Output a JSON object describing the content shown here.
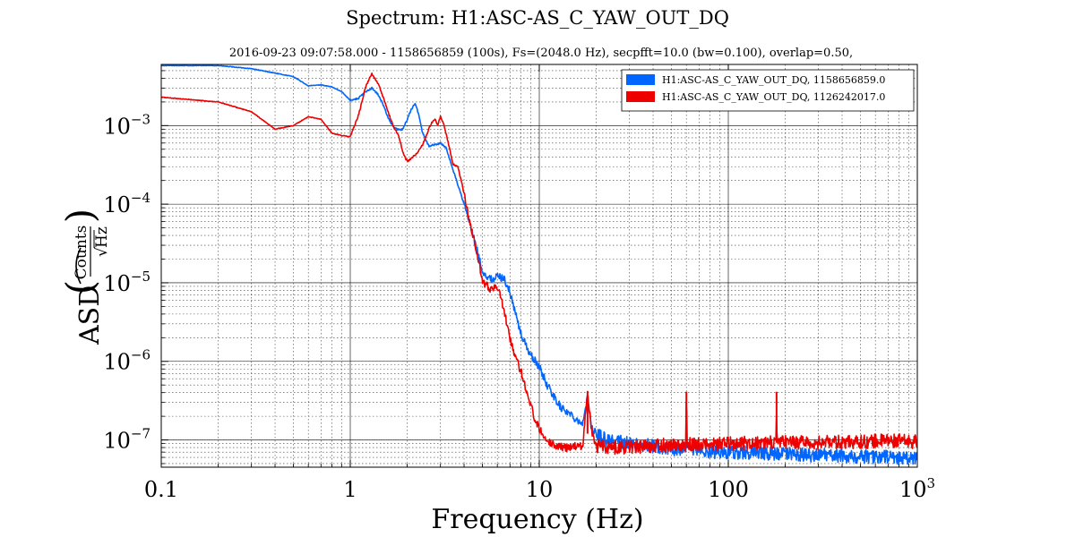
{
  "chart_data": {
    "type": "line",
    "title": "Spectrum: H1:ASC-AS_C_YAW_OUT_DQ",
    "subtitle": "2016-09-23 09:07:58.000 - 1158656859 (100s), Fs=(2048.0 Hz), secpfft=10.0 (bw=0.100), overlap=0.50,",
    "xlabel": "Frequency (Hz)",
    "ylabel": {
      "prefix": "ASD",
      "numerator": "Counts",
      "denominator": "Hz"
    },
    "xscale": "log",
    "yscale": "log",
    "xlim": [
      0.1,
      1000
    ],
    "ylim": [
      4.5e-08,
      0.006
    ],
    "grid": true,
    "legend_position": "top-right",
    "x_ticks": [
      {
        "value": 0.1,
        "label": "0.1"
      },
      {
        "value": 1,
        "label": "1"
      },
      {
        "value": 10,
        "label": "10"
      },
      {
        "value": 100,
        "label": "100"
      },
      {
        "value": 1000,
        "base": "10",
        "exp": "3"
      }
    ],
    "y_ticks": [
      {
        "value": 0.001,
        "base": "10",
        "exp": "−3"
      },
      {
        "value": 0.0001,
        "base": "10",
        "exp": "−4"
      },
      {
        "value": 1e-05,
        "base": "10",
        "exp": "−5"
      },
      {
        "value": 1e-06,
        "base": "10",
        "exp": "−6"
      },
      {
        "value": 1e-07,
        "base": "10",
        "exp": "−7"
      }
    ],
    "series": [
      {
        "name": "H1:ASC-AS_C_YAW_OUT_DQ, 1158656859.0",
        "color": "#0066ff",
        "points": [
          [
            0.1,
            0.0058
          ],
          [
            0.2,
            0.0058
          ],
          [
            0.3,
            0.0053
          ],
          [
            0.5,
            0.0042
          ],
          [
            0.6,
            0.0032
          ],
          [
            0.7,
            0.0033
          ],
          [
            0.8,
            0.0031
          ],
          [
            0.9,
            0.0027
          ],
          [
            1.0,
            0.0021
          ],
          [
            1.1,
            0.0022
          ],
          [
            1.2,
            0.0027
          ],
          [
            1.3,
            0.003
          ],
          [
            1.4,
            0.0025
          ],
          [
            1.5,
            0.0018
          ],
          [
            1.6,
            0.0012
          ],
          [
            1.7,
            0.00095
          ],
          [
            1.8,
            0.00088
          ],
          [
            1.9,
            0.0009
          ],
          [
            2.0,
            0.0012
          ],
          [
            2.1,
            0.0016
          ],
          [
            2.2,
            0.0019
          ],
          [
            2.3,
            0.0014
          ],
          [
            2.4,
            0.00085
          ],
          [
            2.6,
            0.00055
          ],
          [
            2.8,
            0.00057
          ],
          [
            3.0,
            0.0006
          ],
          [
            3.2,
            0.00053
          ],
          [
            3.4,
            0.00034
          ],
          [
            3.7,
            0.00018
          ],
          [
            4.0,
            0.0001
          ],
          [
            4.3,
            5.5e-05
          ],
          [
            4.7,
            2.5e-05
          ],
          [
            5.0,
            1.4e-05
          ],
          [
            5.5,
            1.1e-05
          ],
          [
            6.0,
            1.2e-05
          ],
          [
            6.5,
            1.15e-05
          ],
          [
            7.0,
            7.5e-06
          ],
          [
            7.5,
            4e-06
          ],
          [
            8.0,
            2.2e-06
          ],
          [
            9.0,
            1.2e-06
          ],
          [
            10.0,
            8.5e-07
          ],
          [
            11.0,
            5e-07
          ],
          [
            12.0,
            3.5e-07
          ],
          [
            13.0,
            2.6e-07
          ],
          [
            14.0,
            2.3e-07
          ],
          [
            15.0,
            2e-07
          ],
          [
            16.0,
            1.8e-07
          ],
          [
            17.0,
            1.6e-07
          ],
          [
            18.0,
            3.5e-07
          ],
          [
            19.0,
            1.4e-07
          ],
          [
            20.0,
            1.2e-07
          ],
          [
            22.0,
            1.05e-07
          ],
          [
            25.0,
            9.8e-08
          ],
          [
            30.0,
            9e-08
          ],
          [
            40.0,
            8.3e-08
          ],
          [
            50.0,
            7.6e-08
          ],
          [
            70.0,
            7.2e-08
          ],
          [
            100.0,
            7e-08
          ],
          [
            200.0,
            6.6e-08
          ],
          [
            300.0,
            6.4e-08
          ],
          [
            500.0,
            6.2e-08
          ],
          [
            700.0,
            6e-08
          ],
          [
            1000.0,
            5.8e-08
          ]
        ]
      },
      {
        "name": "H1:ASC-AS_C_YAW_OUT_DQ, 1126242017.0",
        "color": "#ee0000",
        "points": [
          [
            0.1,
            0.0023
          ],
          [
            0.2,
            0.002
          ],
          [
            0.3,
            0.0015
          ],
          [
            0.4,
            0.0009
          ],
          [
            0.5,
            0.001
          ],
          [
            0.6,
            0.0013
          ],
          [
            0.7,
            0.0012
          ],
          [
            0.8,
            0.0008
          ],
          [
            0.9,
            0.00075
          ],
          [
            1.0,
            0.00072
          ],
          [
            1.1,
            0.0013
          ],
          [
            1.2,
            0.003
          ],
          [
            1.3,
            0.0046
          ],
          [
            1.4,
            0.0035
          ],
          [
            1.5,
            0.0022
          ],
          [
            1.6,
            0.0014
          ],
          [
            1.7,
            0.00095
          ],
          [
            1.8,
            0.00075
          ],
          [
            1.9,
            0.00045
          ],
          [
            2.0,
            0.00035
          ],
          [
            2.1,
            0.00038
          ],
          [
            2.2,
            0.00042
          ],
          [
            2.3,
            0.00048
          ],
          [
            2.4,
            0.00055
          ],
          [
            2.5,
            0.0007
          ],
          [
            2.6,
            0.0009
          ],
          [
            2.7,
            0.0011
          ],
          [
            2.8,
            0.0012
          ],
          [
            2.9,
            0.001
          ],
          [
            3.0,
            0.0013
          ],
          [
            3.1,
            0.0011
          ],
          [
            3.3,
            0.0006
          ],
          [
            3.5,
            0.00032
          ],
          [
            3.7,
            0.0003
          ],
          [
            3.9,
            0.00018
          ],
          [
            4.2,
            7.5e-05
          ],
          [
            4.5,
            3.5e-05
          ],
          [
            4.8,
            1.8e-05
          ],
          [
            5.0,
            1e-05
          ],
          [
            5.5,
            8.5e-06
          ],
          [
            6.0,
            9e-06
          ],
          [
            6.5,
            4.5e-06
          ],
          [
            7.0,
            2e-06
          ],
          [
            7.5,
            1.1e-06
          ],
          [
            8.0,
            7.5e-07
          ],
          [
            8.5,
            4.5e-07
          ],
          [
            9.0,
            2.8e-07
          ],
          [
            9.5,
            1.8e-07
          ],
          [
            10.0,
            1.4e-07
          ],
          [
            11.0,
            1e-07
          ],
          [
            12.0,
            8.5e-08
          ],
          [
            14.0,
            8e-08
          ],
          [
            17.0,
            8.5e-08
          ],
          [
            18.0,
            4.2e-07
          ],
          [
            19.0,
            1.2e-07
          ],
          [
            20.0,
            8.5e-08
          ],
          [
            25.0,
            8e-08
          ],
          [
            30.0,
            8.2e-08
          ],
          [
            40.0,
            8.5e-08
          ],
          [
            59.5,
            8.8e-08
          ],
          [
            60.0,
            4.1e-07
          ],
          [
            60.5,
            8.8e-08
          ],
          [
            80.0,
            8.8e-08
          ],
          [
            100.0,
            9e-08
          ],
          [
            179.0,
            9.2e-08
          ],
          [
            180.0,
            4.1e-07
          ],
          [
            181.0,
            9.2e-08
          ],
          [
            300.0,
            9.3e-08
          ],
          [
            500.0,
            9.5e-08
          ],
          [
            700.0,
            9.8e-08
          ],
          [
            1000.0,
            9.5e-08
          ]
        ]
      }
    ]
  }
}
